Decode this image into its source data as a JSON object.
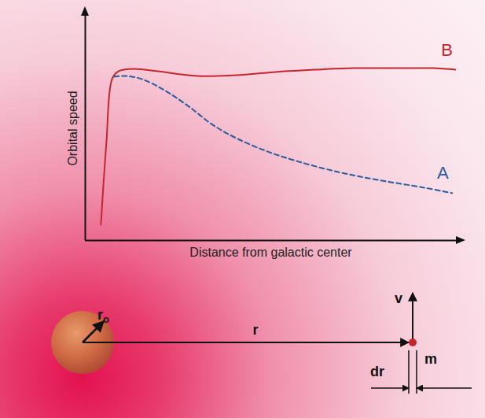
{
  "chart_data": {
    "type": "line",
    "x_label": "Distance from galactic center",
    "y_label": "Orbital speed",
    "xlim": [
      0,
      10
    ],
    "ylim": [
      0,
      10
    ],
    "tick_labels": false,
    "series": [
      {
        "name": "B",
        "color": "#c4262e",
        "line_style": "solid",
        "x": [
          0.42,
          0.57,
          0.72,
          0.89,
          1.31,
          1.95,
          3.01,
          4.07,
          5.13,
          6.19,
          7.25,
          8.31,
          9.36,
          10.0
        ],
        "values": [
          0.7,
          4.39,
          7.19,
          7.54,
          7.65,
          7.54,
          7.33,
          7.37,
          7.51,
          7.61,
          7.68,
          7.68,
          7.68,
          7.61
        ]
      },
      {
        "name": "A",
        "color": "#2e5c9a",
        "line_style": "dashed",
        "x": [
          0.78,
          1.1,
          1.53,
          2.16,
          2.8,
          3.43,
          4.07,
          4.92,
          5.76,
          6.82,
          7.88,
          9.15,
          9.89
        ],
        "values": [
          7.3,
          7.33,
          7.19,
          6.67,
          5.96,
          5.16,
          4.56,
          3.96,
          3.51,
          3.05,
          2.7,
          2.35,
          2.11
        ]
      }
    ]
  },
  "diagram": {
    "core_radius_label": {
      "text": "r",
      "subscript": "o"
    },
    "distance_label": "r",
    "velocity_label": "v",
    "mass_label": "m",
    "shell_width_label": "dr"
  }
}
